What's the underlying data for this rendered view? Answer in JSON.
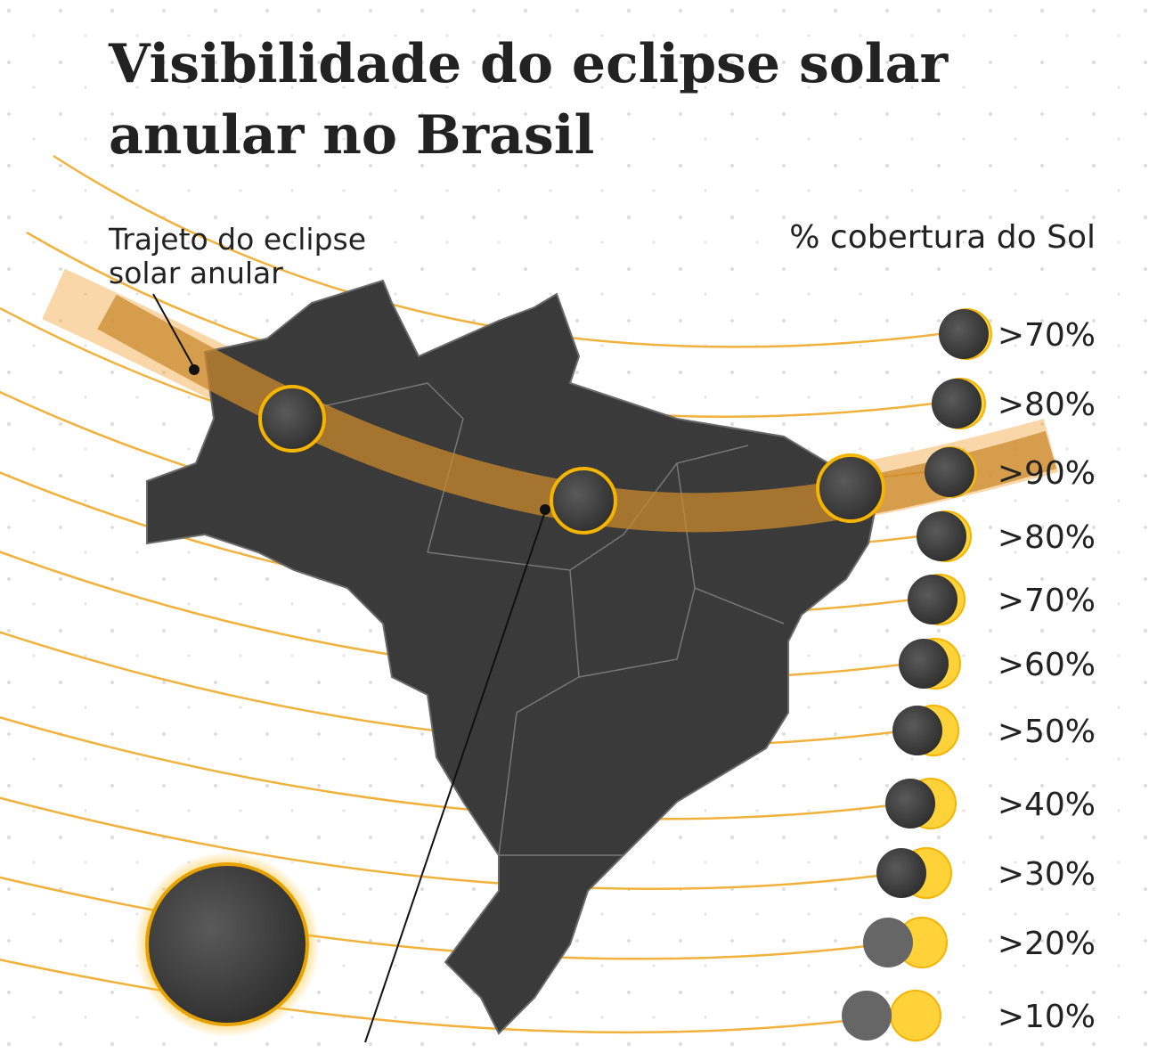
{
  "title": [
    "Visibilidade do eclipse solar",
    "anular no Brasil"
  ],
  "annotation": [
    "Trajeto do eclipse",
    "solar anular"
  ],
  "legend": {
    "title": "% cobertura do Sol",
    "items": [
      ">70%",
      ">80%",
      ">90%",
      ">80%",
      ">70%",
      ">60%",
      ">50%",
      ">40%",
      ">30%",
      ">20%",
      ">10%"
    ]
  }
}
